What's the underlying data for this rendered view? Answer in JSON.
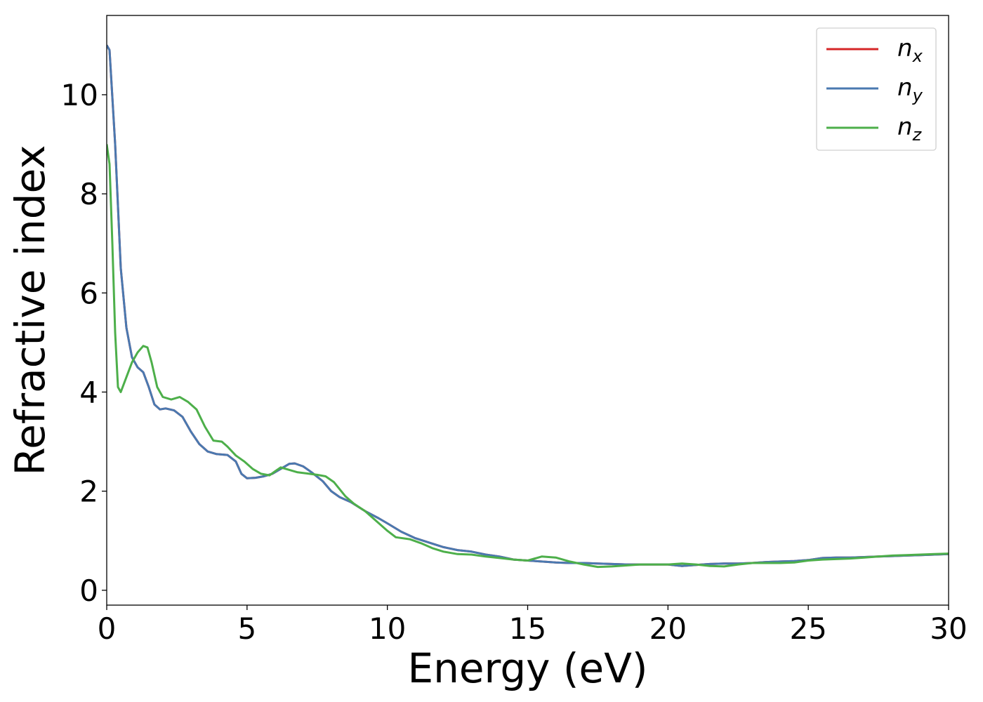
{
  "chart_data": {
    "type": "line",
    "title": "",
    "xlabel": "Energy (eV)",
    "ylabel": "Refractive index",
    "xlim": [
      0,
      30
    ],
    "ylim": [
      -0.3,
      11.6
    ],
    "xticks": [
      0,
      5,
      10,
      15,
      20,
      25,
      30
    ],
    "yticks": [
      0,
      2,
      4,
      6,
      8,
      10
    ],
    "grid": false,
    "legend_position": "top-right",
    "series": [
      {
        "name": "n_x",
        "symbol": "n",
        "subscript": "x",
        "color": "#d62728",
        "points": [
          [
            0.0,
            11.0
          ],
          [
            0.1,
            10.9
          ],
          [
            0.3,
            9.0
          ],
          [
            0.5,
            6.5
          ],
          [
            0.7,
            5.3
          ],
          [
            0.9,
            4.7
          ],
          [
            1.1,
            4.5
          ],
          [
            1.3,
            4.4
          ],
          [
            1.5,
            4.1
          ],
          [
            1.7,
            3.75
          ],
          [
            1.9,
            3.65
          ],
          [
            2.1,
            3.67
          ],
          [
            2.4,
            3.63
          ],
          [
            2.7,
            3.5
          ],
          [
            3.0,
            3.2
          ],
          [
            3.3,
            2.95
          ],
          [
            3.6,
            2.8
          ],
          [
            3.9,
            2.75
          ],
          [
            4.3,
            2.73
          ],
          [
            4.6,
            2.6
          ],
          [
            4.8,
            2.35
          ],
          [
            5.0,
            2.26
          ],
          [
            5.3,
            2.27
          ],
          [
            5.6,
            2.3
          ],
          [
            5.9,
            2.35
          ],
          [
            6.2,
            2.45
          ],
          [
            6.5,
            2.55
          ],
          [
            6.7,
            2.56
          ],
          [
            7.0,
            2.5
          ],
          [
            7.3,
            2.38
          ],
          [
            7.7,
            2.2
          ],
          [
            8.0,
            2.0
          ],
          [
            8.3,
            1.88
          ],
          [
            8.7,
            1.78
          ],
          [
            9.2,
            1.6
          ],
          [
            9.7,
            1.45
          ],
          [
            10.0,
            1.35
          ],
          [
            10.5,
            1.18
          ],
          [
            11.0,
            1.05
          ],
          [
            11.5,
            0.96
          ],
          [
            12.0,
            0.87
          ],
          [
            12.5,
            0.81
          ],
          [
            13.0,
            0.78
          ],
          [
            13.5,
            0.72
          ],
          [
            14.0,
            0.68
          ],
          [
            14.5,
            0.62
          ],
          [
            15.0,
            0.6
          ],
          [
            15.5,
            0.58
          ],
          [
            16.0,
            0.56
          ],
          [
            16.5,
            0.55
          ],
          [
            17.0,
            0.55
          ],
          [
            17.5,
            0.54
          ],
          [
            18.0,
            0.53
          ],
          [
            18.5,
            0.52
          ],
          [
            19.0,
            0.52
          ],
          [
            19.5,
            0.52
          ],
          [
            20.0,
            0.52
          ],
          [
            20.5,
            0.49
          ],
          [
            21.0,
            0.51
          ],
          [
            21.5,
            0.53
          ],
          [
            22.0,
            0.54
          ],
          [
            22.5,
            0.54
          ],
          [
            23.0,
            0.55
          ],
          [
            23.5,
            0.57
          ],
          [
            24.0,
            0.58
          ],
          [
            24.5,
            0.59
          ],
          [
            25.0,
            0.61
          ],
          [
            25.5,
            0.65
          ],
          [
            26.0,
            0.66
          ],
          [
            26.5,
            0.66
          ],
          [
            27.0,
            0.67
          ],
          [
            27.5,
            0.68
          ],
          [
            28.0,
            0.69
          ],
          [
            28.5,
            0.7
          ],
          [
            29.0,
            0.71
          ],
          [
            29.5,
            0.72
          ],
          [
            30.0,
            0.73
          ]
        ]
      },
      {
        "name": "n_y",
        "symbol": "n",
        "subscript": "y",
        "color": "#4a79b0",
        "points": [
          [
            0.0,
            11.0
          ],
          [
            0.1,
            10.9
          ],
          [
            0.3,
            9.0
          ],
          [
            0.5,
            6.5
          ],
          [
            0.7,
            5.3
          ],
          [
            0.9,
            4.7
          ],
          [
            1.1,
            4.5
          ],
          [
            1.3,
            4.4
          ],
          [
            1.5,
            4.1
          ],
          [
            1.7,
            3.75
          ],
          [
            1.9,
            3.65
          ],
          [
            2.1,
            3.67
          ],
          [
            2.4,
            3.63
          ],
          [
            2.7,
            3.5
          ],
          [
            3.0,
            3.2
          ],
          [
            3.3,
            2.95
          ],
          [
            3.6,
            2.8
          ],
          [
            3.9,
            2.75
          ],
          [
            4.3,
            2.73
          ],
          [
            4.6,
            2.6
          ],
          [
            4.8,
            2.35
          ],
          [
            5.0,
            2.26
          ],
          [
            5.3,
            2.27
          ],
          [
            5.6,
            2.3
          ],
          [
            5.9,
            2.35
          ],
          [
            6.2,
            2.45
          ],
          [
            6.5,
            2.55
          ],
          [
            6.7,
            2.56
          ],
          [
            7.0,
            2.5
          ],
          [
            7.3,
            2.38
          ],
          [
            7.7,
            2.2
          ],
          [
            8.0,
            2.0
          ],
          [
            8.3,
            1.88
          ],
          [
            8.7,
            1.78
          ],
          [
            9.2,
            1.6
          ],
          [
            9.7,
            1.45
          ],
          [
            10.0,
            1.35
          ],
          [
            10.5,
            1.18
          ],
          [
            11.0,
            1.05
          ],
          [
            11.5,
            0.96
          ],
          [
            12.0,
            0.87
          ],
          [
            12.5,
            0.81
          ],
          [
            13.0,
            0.78
          ],
          [
            13.5,
            0.72
          ],
          [
            14.0,
            0.68
          ],
          [
            14.5,
            0.62
          ],
          [
            15.0,
            0.6
          ],
          [
            15.5,
            0.58
          ],
          [
            16.0,
            0.56
          ],
          [
            16.5,
            0.55
          ],
          [
            17.0,
            0.55
          ],
          [
            17.5,
            0.54
          ],
          [
            18.0,
            0.53
          ],
          [
            18.5,
            0.52
          ],
          [
            19.0,
            0.52
          ],
          [
            19.5,
            0.52
          ],
          [
            20.0,
            0.52
          ],
          [
            20.5,
            0.49
          ],
          [
            21.0,
            0.51
          ],
          [
            21.5,
            0.53
          ],
          [
            22.0,
            0.54
          ],
          [
            22.5,
            0.54
          ],
          [
            23.0,
            0.55
          ],
          [
            23.5,
            0.57
          ],
          [
            24.0,
            0.58
          ],
          [
            24.5,
            0.59
          ],
          [
            25.0,
            0.61
          ],
          [
            25.5,
            0.65
          ],
          [
            26.0,
            0.66
          ],
          [
            26.5,
            0.66
          ],
          [
            27.0,
            0.67
          ],
          [
            27.5,
            0.68
          ],
          [
            28.0,
            0.69
          ],
          [
            28.5,
            0.7
          ],
          [
            29.0,
            0.71
          ],
          [
            29.5,
            0.72
          ],
          [
            30.0,
            0.73
          ]
        ]
      },
      {
        "name": "n_z",
        "symbol": "n",
        "subscript": "z",
        "color": "#4daf4a",
        "points": [
          [
            0.0,
            9.0
          ],
          [
            0.1,
            8.6
          ],
          [
            0.2,
            7.0
          ],
          [
            0.3,
            5.2
          ],
          [
            0.4,
            4.1
          ],
          [
            0.5,
            4.0
          ],
          [
            0.7,
            4.3
          ],
          [
            0.9,
            4.6
          ],
          [
            1.1,
            4.8
          ],
          [
            1.3,
            4.93
          ],
          [
            1.45,
            4.9
          ],
          [
            1.6,
            4.6
          ],
          [
            1.8,
            4.1
          ],
          [
            2.0,
            3.9
          ],
          [
            2.3,
            3.85
          ],
          [
            2.6,
            3.9
          ],
          [
            2.9,
            3.8
          ],
          [
            3.2,
            3.65
          ],
          [
            3.5,
            3.3
          ],
          [
            3.8,
            3.02
          ],
          [
            4.1,
            3.0
          ],
          [
            4.3,
            2.9
          ],
          [
            4.6,
            2.72
          ],
          [
            4.9,
            2.6
          ],
          [
            5.2,
            2.45
          ],
          [
            5.5,
            2.35
          ],
          [
            5.8,
            2.32
          ],
          [
            6.0,
            2.4
          ],
          [
            6.2,
            2.48
          ],
          [
            6.5,
            2.43
          ],
          [
            6.8,
            2.38
          ],
          [
            7.1,
            2.36
          ],
          [
            7.5,
            2.33
          ],
          [
            7.8,
            2.3
          ],
          [
            8.1,
            2.18
          ],
          [
            8.5,
            1.9
          ],
          [
            8.8,
            1.75
          ],
          [
            9.2,
            1.6
          ],
          [
            9.6,
            1.4
          ],
          [
            10.0,
            1.2
          ],
          [
            10.3,
            1.07
          ],
          [
            10.8,
            1.03
          ],
          [
            11.2,
            0.95
          ],
          [
            11.6,
            0.85
          ],
          [
            12.0,
            0.78
          ],
          [
            12.5,
            0.73
          ],
          [
            13.0,
            0.72
          ],
          [
            13.5,
            0.68
          ],
          [
            14.0,
            0.65
          ],
          [
            14.5,
            0.62
          ],
          [
            15.0,
            0.6
          ],
          [
            15.5,
            0.68
          ],
          [
            16.0,
            0.66
          ],
          [
            16.5,
            0.58
          ],
          [
            17.0,
            0.52
          ],
          [
            17.5,
            0.47
          ],
          [
            18.0,
            0.48
          ],
          [
            18.5,
            0.5
          ],
          [
            19.0,
            0.52
          ],
          [
            19.5,
            0.52
          ],
          [
            20.0,
            0.52
          ],
          [
            20.5,
            0.54
          ],
          [
            21.0,
            0.52
          ],
          [
            21.5,
            0.49
          ],
          [
            22.0,
            0.48
          ],
          [
            22.5,
            0.52
          ],
          [
            23.0,
            0.55
          ],
          [
            23.5,
            0.55
          ],
          [
            24.0,
            0.55
          ],
          [
            24.5,
            0.56
          ],
          [
            25.0,
            0.6
          ],
          [
            25.5,
            0.62
          ],
          [
            26.0,
            0.63
          ],
          [
            26.5,
            0.64
          ],
          [
            27.0,
            0.66
          ],
          [
            27.5,
            0.68
          ],
          [
            28.0,
            0.7
          ],
          [
            28.5,
            0.71
          ],
          [
            29.0,
            0.72
          ],
          [
            29.5,
            0.73
          ],
          [
            30.0,
            0.74
          ]
        ]
      }
    ]
  }
}
